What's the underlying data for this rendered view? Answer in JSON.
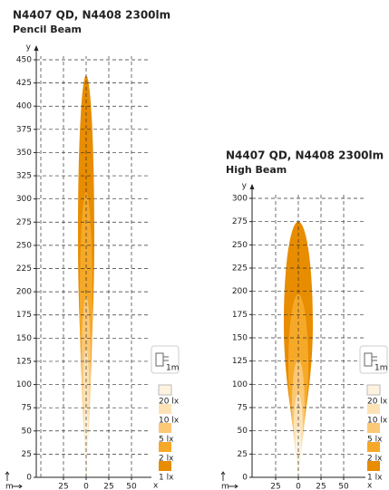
{
  "chart_data": [
    {
      "type": "beam",
      "title": "N4407 QD, N4408 2300lm",
      "subtitle": "Pencil Beam",
      "xlabel": "x",
      "ylabel": "y",
      "unit": "m",
      "icon_label": "1m",
      "ylim": [
        0,
        450
      ],
      "yticks": [
        0,
        25,
        50,
        75,
        100,
        125,
        150,
        175,
        200,
        225,
        250,
        275,
        300,
        325,
        350,
        375,
        400,
        425,
        450
      ],
      "xlim": [
        -55,
        70
      ],
      "xticks": [
        {
          "value": -25,
          "label": "25"
        },
        0,
        25,
        50
      ],
      "xgrid": [
        -50,
        -25,
        0,
        25,
        50
      ],
      "grid": true,
      "series": [
        {
          "name": "1 lx",
          "color": "#e88c00",
          "reach": 433,
          "half_width": 9
        },
        {
          "name": "2 lx",
          "color": "#f6a928",
          "reach": 307,
          "half_width": 7
        },
        {
          "name": "5 lx",
          "color": "#fbc876",
          "reach": 195,
          "half_width": 5
        },
        {
          "name": "10 lx",
          "color": "#fde2b5",
          "reach": 139,
          "half_width": 3.5
        },
        {
          "name": "20 lx",
          "color": "#fdf3df",
          "reach": 75,
          "half_width": 2
        }
      ]
    },
    {
      "type": "beam",
      "title": "N4407 QD, N4408 2300lm",
      "subtitle": "High Beam",
      "xlabel": "x",
      "ylabel": "y",
      "unit": "m",
      "icon_label": "1m",
      "ylim": [
        0,
        300
      ],
      "yticks": [
        0,
        25,
        50,
        75,
        100,
        125,
        150,
        175,
        200,
        225,
        250,
        275,
        300
      ],
      "xlim": [
        -51,
        72
      ],
      "xticks": [
        {
          "value": -25,
          "label": "25"
        },
        0,
        25,
        50
      ],
      "xgrid": [
        -25,
        0,
        25,
        50
      ],
      "grid": true,
      "series": [
        {
          "name": "1 lx",
          "color": "#e88c00",
          "reach": 275,
          "half_width": 16
        },
        {
          "name": "2 lx",
          "color": "#f6a928",
          "reach": 197,
          "half_width": 11
        },
        {
          "name": "5 lx",
          "color": "#fbc876",
          "reach": 127,
          "half_width": 7
        },
        {
          "name": "10 lx",
          "color": "#fde2b5",
          "reach": 90,
          "half_width": 5
        },
        {
          "name": "20 lx",
          "color": "#fdf3df",
          "reach": 55,
          "half_width": 3
        }
      ]
    }
  ]
}
